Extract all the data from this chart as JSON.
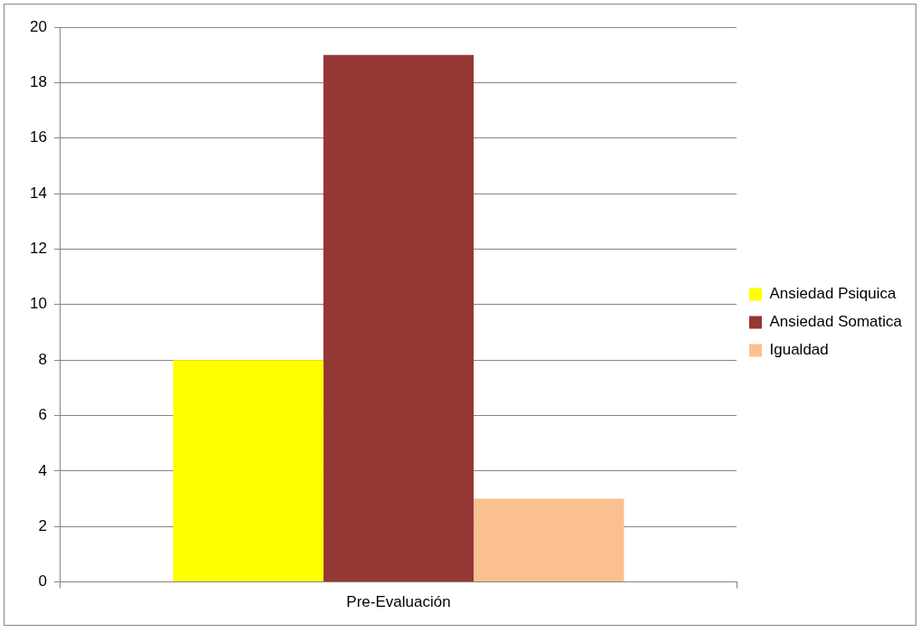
{
  "chart_data": {
    "type": "bar",
    "categories": [
      "Pre-Evaluación"
    ],
    "series": [
      {
        "name": "Ansiedad Psiquica",
        "color": "#ffff00",
        "values": [
          8
        ]
      },
      {
        "name": "Ansiedad Somatica",
        "color": "#953735",
        "values": [
          19
        ]
      },
      {
        "name": "Igualdad",
        "color": "#fac090",
        "values": [
          3
        ]
      }
    ],
    "ylim": [
      0,
      20
    ],
    "yticks": [
      0,
      2,
      4,
      6,
      8,
      10,
      12,
      14,
      16,
      18,
      20
    ],
    "grid": "y",
    "legend": "right"
  }
}
